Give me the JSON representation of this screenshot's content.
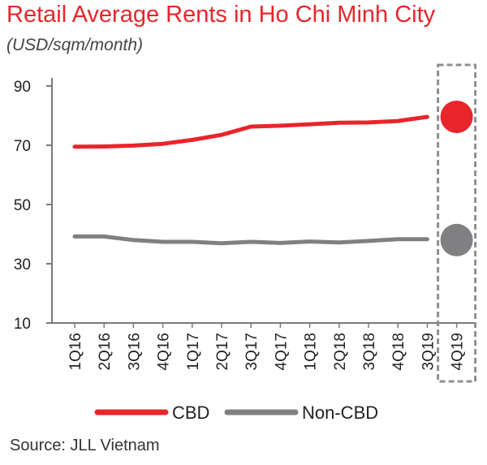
{
  "chart_data": {
    "type": "line",
    "title": "Retail Average Rents in Ho Chi Minh City",
    "subtitle": "(USD/sqm/month)",
    "source": "Source: JLL Vietnam",
    "categories": [
      "1Q16",
      "2Q16",
      "3Q16",
      "4Q16",
      "1Q17",
      "2Q17",
      "3Q17",
      "4Q17",
      "1Q18",
      "2Q18",
      "3Q18",
      "4Q18",
      "3Q19",
      "4Q19"
    ],
    "y_ticks": [
      "90",
      "70",
      "50",
      "30",
      "10"
    ],
    "ylim": [
      10,
      90
    ],
    "grid": false,
    "legend_position": "bottom",
    "highlight": {
      "category": "4Q19",
      "style": "dashed box"
    },
    "series": [
      {
        "name": "CBD",
        "color": "#e8252b",
        "values": [
          69.5,
          69.6,
          69.9,
          70.5,
          71.8,
          73.5,
          76.3,
          76.6,
          77.1,
          77.6,
          77.7,
          78.2,
          79.6,
          79.6
        ]
      },
      {
        "name": "Non-CBD",
        "color": "#808082",
        "values": [
          39.2,
          39.2,
          38.0,
          37.4,
          37.4,
          36.9,
          37.4,
          37.0,
          37.5,
          37.2,
          37.7,
          38.3,
          38.3,
          38.0
        ]
      }
    ]
  }
}
